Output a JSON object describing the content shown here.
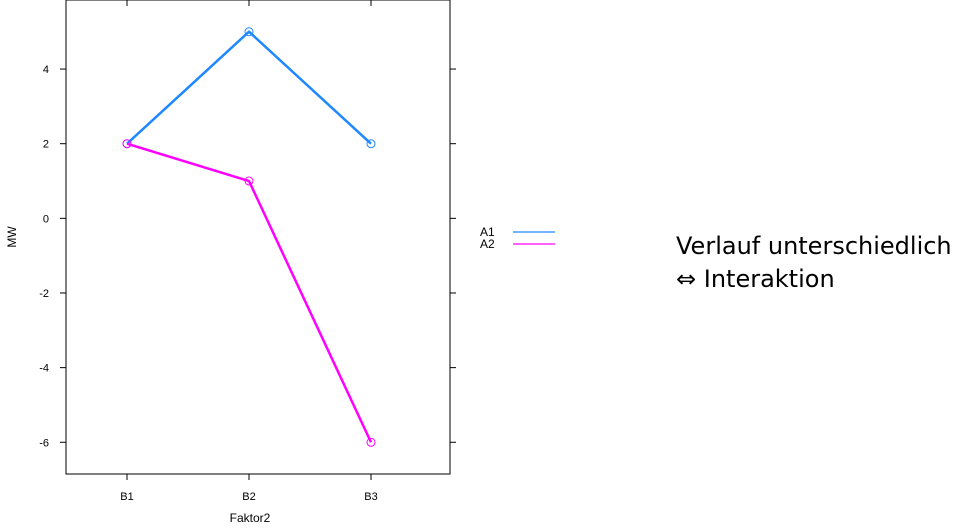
{
  "chart_data": {
    "type": "line",
    "categories": [
      "B1",
      "B2",
      "B3"
    ],
    "series": [
      {
        "name": "A1",
        "values": [
          2,
          5,
          2
        ],
        "color": "#1e88ff"
      },
      {
        "name": "A2",
        "values": [
          2,
          1,
          -6
        ],
        "color": "#ff00ff"
      }
    ],
    "xlabel": "Faktor2",
    "ylabel": "MW",
    "yticks": [
      -6,
      -4,
      -2,
      0,
      2,
      4
    ],
    "ylim": [
      -6.85,
      5.85
    ],
    "grid": false,
    "legend_position": "right"
  },
  "note": {
    "line1": "Verlauf unterschiedlich",
    "line2": "⇔ Interaktion"
  }
}
